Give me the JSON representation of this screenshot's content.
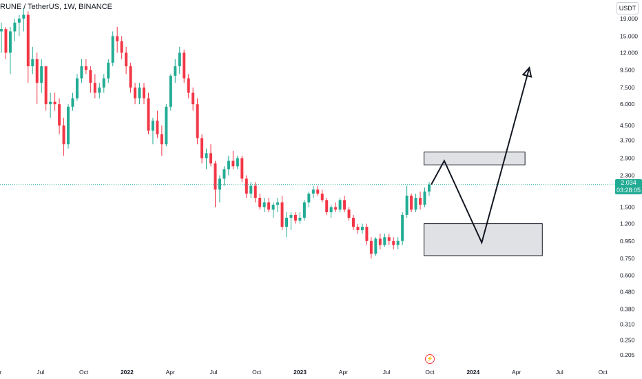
{
  "header": {
    "title": "RUNE / TetherUS, 1W, BINANCE",
    "currency": "USDT"
  },
  "last_price": {
    "value": "2.034",
    "countdown": "03:28:05"
  },
  "colors": {
    "up": "#22ab94",
    "down": "#f23645",
    "zone_fill": "#e0e1e5",
    "zone_stroke": "#131722",
    "price_line": "#22ab94"
  },
  "event_icon": "lightning-icon",
  "chart_data": {
    "type": "candlestick",
    "symbol": "RUNE / TetherUS",
    "interval": "1W",
    "exchange": "BINANCE",
    "scale": "log",
    "y_ticks": [
      "19.000",
      "15.000",
      "12.000",
      "9.500",
      "7.500",
      "6.000",
      "4.500",
      "3.700",
      "2.900",
      "2.300",
      "1.500",
      "1.200",
      "0.950",
      "0.750",
      "0.600",
      "0.480",
      "0.380",
      "0.310",
      "0.250",
      "0.205"
    ],
    "x_ticks": [
      "Apr",
      "Jul",
      "Oct",
      "2022",
      "Apr",
      "Jul",
      "Oct",
      "2023",
      "Apr",
      "Jul",
      "Oct",
      "2024",
      "Apr",
      "Jul",
      "Oct"
    ],
    "year_ticks": [
      "2022",
      "2023",
      "2024"
    ],
    "last_price": 2.034,
    "candles_ohlc": [
      [
        16,
        18,
        12,
        16.5
      ],
      [
        16.5,
        17,
        11,
        12
      ],
      [
        12,
        17,
        9,
        16
      ],
      [
        16,
        19,
        14,
        18
      ],
      [
        18,
        20,
        15,
        19
      ],
      [
        19,
        22,
        16,
        20
      ],
      [
        20,
        21,
        8,
        10
      ],
      [
        10,
        13,
        9,
        11
      ],
      [
        11,
        12,
        6,
        8
      ],
      [
        8,
        11,
        7,
        10
      ],
      [
        10,
        10,
        5.5,
        6
      ],
      [
        6,
        7,
        5,
        6.2
      ],
      [
        6.2,
        7,
        5.5,
        6
      ],
      [
        6,
        6.5,
        4,
        4.5
      ],
      [
        4.5,
        5,
        3,
        3.5
      ],
      [
        3.5,
        6,
        3.3,
        5.8
      ],
      [
        5.8,
        7,
        5.5,
        6.5
      ],
      [
        6.5,
        9,
        6.3,
        8.5
      ],
      [
        8.5,
        11,
        8,
        10
      ],
      [
        10,
        11,
        9,
        9.5
      ],
      [
        9.5,
        10,
        7,
        8
      ],
      [
        8,
        9,
        6.5,
        7
      ],
      [
        7,
        8,
        6.5,
        7.5
      ],
      [
        7.5,
        9,
        7,
        8.5
      ],
      [
        8.5,
        11,
        8,
        10.5
      ],
      [
        10.5,
        16,
        10,
        15
      ],
      [
        15,
        17,
        12,
        14
      ],
      [
        14,
        15,
        11,
        12
      ],
      [
        12,
        13,
        9,
        10
      ],
      [
        10,
        10.5,
        7,
        7.5
      ],
      [
        7.5,
        8,
        6,
        6.5
      ],
      [
        6.5,
        8,
        6,
        7.5
      ],
      [
        7.5,
        8,
        6,
        6.5
      ],
      [
        6.5,
        7,
        4,
        4.2
      ],
      [
        4.2,
        5,
        3.5,
        4.8
      ],
      [
        4.8,
        5.5,
        3.8,
        4
      ],
      [
        4,
        4.5,
        3,
        3.5
      ],
      [
        3.5,
        6,
        3.4,
        5.8
      ],
      [
        5.8,
        9,
        5.5,
        8.8
      ],
      [
        8.8,
        11,
        8,
        10
      ],
      [
        10,
        13,
        9,
        12
      ],
      [
        12,
        12.5,
        8,
        8.5
      ],
      [
        8.5,
        9,
        6.5,
        7
      ],
      [
        7,
        7.5,
        5.5,
        6
      ],
      [
        6,
        6.5,
        3.5,
        3.8
      ],
      [
        3.8,
        4,
        2.7,
        2.9
      ],
      [
        2.9,
        3.3,
        2.5,
        3.1
      ],
      [
        3.1,
        3.5,
        2.6,
        2.7
      ],
      [
        2.7,
        2.8,
        1.5,
        1.9
      ],
      [
        1.9,
        2.3,
        1.6,
        2.2
      ],
      [
        2.2,
        2.6,
        2,
        2.5
      ],
      [
        2.5,
        3,
        2.3,
        2.8
      ],
      [
        2.8,
        3.2,
        2.5,
        2.6
      ],
      [
        2.6,
        3,
        2.5,
        2.9
      ],
      [
        2.9,
        3,
        2.1,
        2.2
      ],
      [
        2.2,
        2.3,
        1.7,
        1.8
      ],
      [
        1.8,
        2.1,
        1.7,
        2
      ],
      [
        2,
        2.1,
        1.6,
        1.7
      ],
      [
        1.7,
        1.8,
        1.45,
        1.5
      ],
      [
        1.5,
        1.7,
        1.4,
        1.6
      ],
      [
        1.6,
        1.7,
        1.4,
        1.45
      ],
      [
        1.45,
        1.6,
        1.3,
        1.55
      ],
      [
        1.55,
        1.7,
        1.4,
        1.6
      ],
      [
        1.6,
        1.75,
        1.1,
        1.15
      ],
      [
        1.15,
        1.4,
        1,
        1.3
      ],
      [
        1.3,
        1.4,
        1.1,
        1.35
      ],
      [
        1.35,
        1.4,
        1.2,
        1.25
      ],
      [
        1.25,
        1.4,
        1.2,
        1.3
      ],
      [
        1.3,
        1.65,
        1.25,
        1.6
      ],
      [
        1.6,
        1.85,
        1.5,
        1.8
      ],
      [
        1.8,
        2,
        1.7,
        1.9
      ],
      [
        1.9,
        2,
        1.75,
        1.8
      ],
      [
        1.8,
        1.9,
        1.6,
        1.65
      ],
      [
        1.65,
        1.7,
        1.35,
        1.4
      ],
      [
        1.4,
        1.55,
        1.3,
        1.5
      ],
      [
        1.5,
        1.6,
        1.4,
        1.45
      ],
      [
        1.45,
        1.7,
        1.4,
        1.65
      ],
      [
        1.65,
        1.75,
        1.4,
        1.45
      ],
      [
        1.45,
        1.5,
        1.25,
        1.3
      ],
      [
        1.3,
        1.35,
        1.1,
        1.15
      ],
      [
        1.15,
        1.2,
        1.05,
        1.1
      ],
      [
        1.1,
        1.2,
        1.05,
        1.15
      ],
      [
        1.15,
        1.2,
        0.9,
        0.95
      ],
      [
        0.95,
        1,
        0.75,
        0.8
      ],
      [
        0.8,
        1,
        0.78,
        0.98
      ],
      [
        0.98,
        1.05,
        0.85,
        0.9
      ],
      [
        0.9,
        1.05,
        0.88,
        1
      ],
      [
        1,
        1.05,
        0.9,
        0.95
      ],
      [
        0.95,
        1,
        0.85,
        0.9
      ],
      [
        0.9,
        1,
        0.85,
        0.95
      ],
      [
        0.95,
        1.4,
        0.9,
        1.35
      ],
      [
        1.35,
        2,
        1.3,
        1.75
      ],
      [
        1.75,
        1.8,
        1.4,
        1.45
      ],
      [
        1.45,
        1.8,
        1.4,
        1.7
      ],
      [
        1.7,
        1.85,
        1.45,
        1.55
      ],
      [
        1.55,
        1.95,
        1.5,
        1.85
      ],
      [
        1.85,
        2.1,
        1.75,
        2.034
      ]
    ],
    "annotations": {
      "resistance_zone": {
        "price_low": 2.65,
        "price_high": 3.15
      },
      "support_zone": {
        "price_low": 0.78,
        "price_high": 1.2
      },
      "projection_path": [
        {
          "time": "2023-10",
          "price": 2.034
        },
        {
          "time": "2023-11",
          "price": 2.8
        },
        {
          "time": "2024-01",
          "price": 0.93
        },
        {
          "time": "2024-04",
          "price": 9.8
        }
      ]
    }
  }
}
